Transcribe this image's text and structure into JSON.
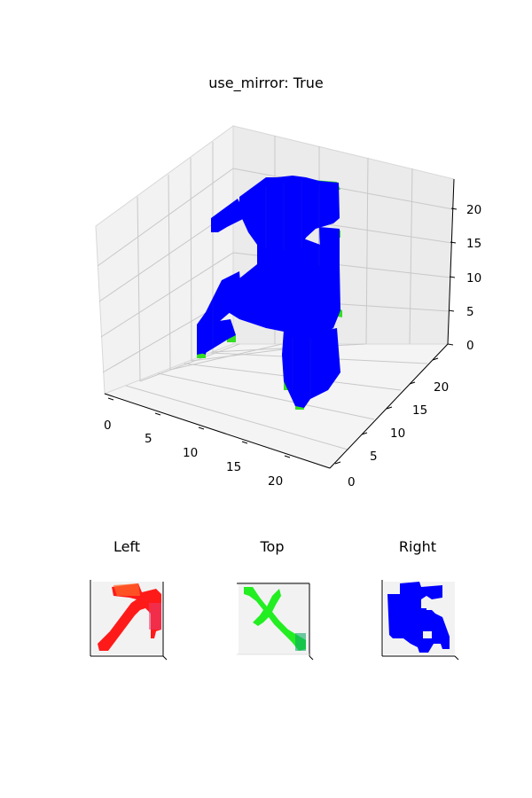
{
  "figure": {
    "title": "use_mirror: True"
  },
  "chart_data": [
    {
      "type": "voxel-3d",
      "title": "use_mirror: True",
      "x_ticks": [
        "0",
        "5",
        "10",
        "15",
        "20"
      ],
      "y_ticks": [
        "0",
        "5",
        "10",
        "15",
        "20"
      ],
      "z_ticks": [
        "0",
        "5",
        "10",
        "15",
        "20"
      ],
      "xlim": [
        0,
        24
      ],
      "ylim": [
        0,
        24
      ],
      "zlim": [
        0,
        24
      ],
      "grid": true,
      "colors": {
        "face": "#0000ff",
        "edge_side": "#33dd22",
        "top": "#2a2aff"
      }
    },
    {
      "type": "voxel-projection",
      "title": "Left",
      "color": "#ff1a1a"
    },
    {
      "type": "voxel-projection",
      "title": "Top",
      "color": "#22ee22"
    },
    {
      "type": "voxel-projection",
      "title": "Right",
      "color": "#0000ff"
    }
  ]
}
